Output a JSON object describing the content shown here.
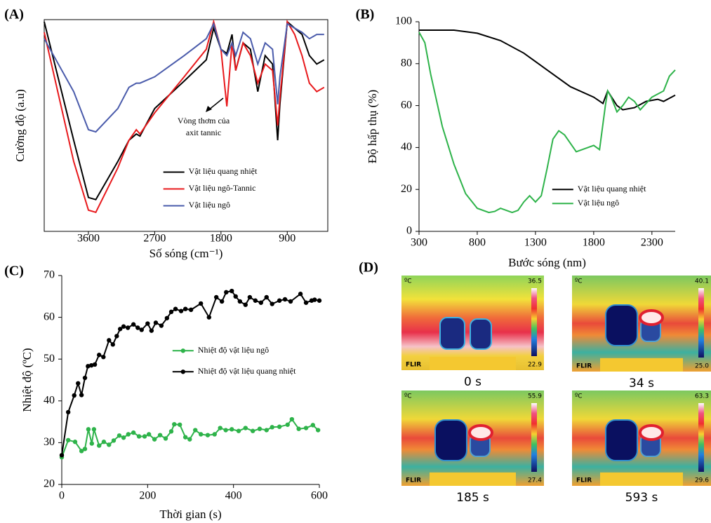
{
  "panel_labels": [
    "(A)",
    "(B)",
    "(C)",
    "(D)"
  ],
  "chart_data": [
    {
      "type": "line",
      "x_label": "Số sóng (cm⁻¹)",
      "y_label": "Cường độ (a.u)",
      "xlim": [
        4200,
        350
      ],
      "xticks": [
        3600,
        2700,
        1800,
        900
      ],
      "ylim": [
        0,
        100
      ],
      "box": true,
      "legend": "lower-center",
      "annotation": [
        "Vòng thơm của",
        "axit tannic"
      ],
      "x": [
        4200,
        3800,
        3600,
        3500,
        3200,
        3050,
        2950,
        2900,
        2700,
        2300,
        2000,
        1900,
        1800,
        1720,
        1650,
        1600,
        1500,
        1400,
        1300,
        1200,
        1100,
        1030,
        1000,
        900,
        800,
        700,
        600,
        500,
        400
      ],
      "series": [
        {
          "name": "Vật liệu quang nhiệt",
          "color": "#000000",
          "values": [
            99,
            43,
            16,
            15,
            33,
            43,
            46,
            45,
            58,
            71,
            81,
            96,
            86,
            84,
            93,
            76,
            89,
            86,
            66,
            83,
            79,
            43,
            60,
            99,
            96,
            93,
            83,
            79,
            81
          ]
        },
        {
          "name": "Vật liệu ngô-Tannic",
          "color": "#e8191c",
          "values": [
            94,
            33,
            10,
            9,
            30,
            43,
            48,
            46,
            56,
            73,
            86,
            99,
            86,
            59,
            89,
            76,
            89,
            83,
            70,
            79,
            76,
            50,
            63,
            99,
            93,
            83,
            70,
            66,
            68
          ]
        },
        {
          "name": "Vật liệu ngô",
          "color": "#4a5bab",
          "values": [
            91,
            66,
            48,
            47,
            58,
            68,
            70,
            70,
            73,
            83,
            91,
            98,
            86,
            83,
            89,
            83,
            94,
            91,
            79,
            89,
            86,
            60,
            73,
            98,
            96,
            94,
            91,
            93,
            93
          ]
        }
      ]
    },
    {
      "type": "line",
      "x_label": "Bước sóng (nm)",
      "y_label": "Độ hấp thụ (%)",
      "xlim": [
        300,
        2500
      ],
      "xticks": [
        300,
        800,
        1300,
        1800,
        2300
      ],
      "ylim": [
        0,
        100
      ],
      "yticks": [
        0,
        20,
        40,
        60,
        80,
        100
      ],
      "box": false,
      "legend": "lower-right",
      "series": [
        {
          "name": "Vật liệu quang nhiệt",
          "color": "#000000",
          "x": [
            300,
            600,
            800,
            1000,
            1200,
            1400,
            1600,
            1800,
            1880,
            1920,
            2000,
            2050,
            2150,
            2250,
            2350,
            2400,
            2500
          ],
          "values": [
            96,
            96,
            94.5,
            91,
            85,
            77,
            69,
            64,
            61,
            67,
            60,
            58,
            59,
            62,
            63,
            62,
            65
          ]
        },
        {
          "name": "Vật liệu ngô",
          "color": "#2eb34a",
          "x": [
            300,
            350,
            400,
            500,
            600,
            700,
            800,
            900,
            950,
            1000,
            1050,
            1100,
            1150,
            1200,
            1250,
            1300,
            1350,
            1400,
            1450,
            1500,
            1550,
            1600,
            1650,
            1700,
            1750,
            1800,
            1850,
            1900,
            1920,
            1950,
            2000,
            2050,
            2100,
            2150,
            2200,
            2300,
            2400,
            2450,
            2500
          ],
          "values": [
            95,
            90,
            75,
            50,
            32,
            18,
            11,
            9,
            9.5,
            11,
            10,
            9,
            10,
            14,
            17,
            14,
            17,
            30,
            44,
            48,
            46,
            42,
            38,
            39,
            40,
            41,
            39,
            60,
            67,
            64,
            57,
            60,
            64,
            62,
            58,
            64,
            67,
            74,
            77
          ]
        }
      ]
    },
    {
      "type": "line",
      "x_label": "Thời gian (s)",
      "y_label": "Nhiệt độ (ºC)",
      "markers": true,
      "xlim": [
        0,
        600
      ],
      "xticks": [
        0,
        200,
        400,
        600
      ],
      "ylim": [
        20,
        70
      ],
      "yticks": [
        20,
        30,
        40,
        50,
        60,
        70
      ],
      "box": false,
      "legend": "center",
      "series": [
        {
          "name": "Nhiệt độ vật liệu ngô",
          "color": "#2eb34a",
          "x": [
            0,
            15,
            31,
            46,
            54,
            62,
            70,
            75,
            87,
            98,
            110,
            121,
            134,
            144,
            155,
            167,
            180,
            193,
            203,
            216,
            229,
            242,
            255,
            262,
            275,
            288,
            298,
            311,
            324,
            340,
            356,
            369,
            382,
            396,
            412,
            428,
            445,
            461,
            477,
            490,
            507,
            526,
            536,
            552,
            569,
            585,
            597
          ],
          "values": [
            26.5,
            30.6,
            30.2,
            28,
            28.5,
            33.2,
            29.8,
            33.2,
            29.3,
            30.2,
            29.5,
            30.5,
            31.7,
            31.2,
            32,
            32.4,
            31.5,
            31.5,
            32,
            30.8,
            31.8,
            31,
            32.7,
            34.4,
            34.3,
            31.3,
            30.8,
            33,
            32,
            31.8,
            32,
            33.5,
            33,
            33.2,
            32.8,
            33.5,
            32.8,
            33.3,
            33,
            33.7,
            33.8,
            34.3,
            35.6,
            33.3,
            33.5,
            34.2,
            33
          ]
        },
        {
          "name": "Nhiệt độ vật liệu quang nhiệt",
          "color": "#000000",
          "x": [
            0,
            15,
            29,
            38,
            46,
            54,
            61,
            69,
            77,
            87,
            97,
            110,
            119,
            128,
            136,
            144,
            154,
            167,
            177,
            186,
            200,
            209,
            219,
            232,
            245,
            255,
            265,
            278,
            288,
            301,
            324,
            343,
            360,
            373,
            383,
            396,
            405,
            415,
            428,
            438,
            451,
            464,
            477,
            490,
            507,
            520,
            533,
            556,
            569,
            582,
            589,
            600
          ],
          "values": [
            27,
            37.3,
            41.3,
            44.2,
            41.4,
            45.5,
            48.3,
            48.5,
            48.7,
            51,
            50.5,
            54.5,
            53.5,
            55.5,
            57.2,
            57.8,
            57.5,
            58.3,
            57.5,
            57,
            58.5,
            56.8,
            58.7,
            58,
            59.8,
            61.3,
            62,
            61.5,
            62,
            61.8,
            63.3,
            60,
            64.8,
            63.8,
            66,
            66.3,
            65,
            63.8,
            63,
            64.8,
            64,
            63.5,
            64.8,
            63.2,
            64,
            64.3,
            63.8,
            65.6,
            63.5,
            64,
            64.2,
            64
          ]
        }
      ]
    }
  ],
  "thermal_images": [
    {
      "unit": "ºC",
      "max": "36.5",
      "min": "22.9",
      "brand": "FLIR",
      "time": "0 s"
    },
    {
      "unit": "ºC",
      "max": "40.1",
      "min": "25.0",
      "brand": "FLIR",
      "time": "34 s"
    },
    {
      "unit": "ºC",
      "max": "55.9",
      "min": "27.4",
      "brand": "FLIR",
      "time": "185 s"
    },
    {
      "unit": "ºC",
      "max": "63.3",
      "min": "29.6",
      "brand": "FLIR",
      "time": "593 s"
    }
  ]
}
